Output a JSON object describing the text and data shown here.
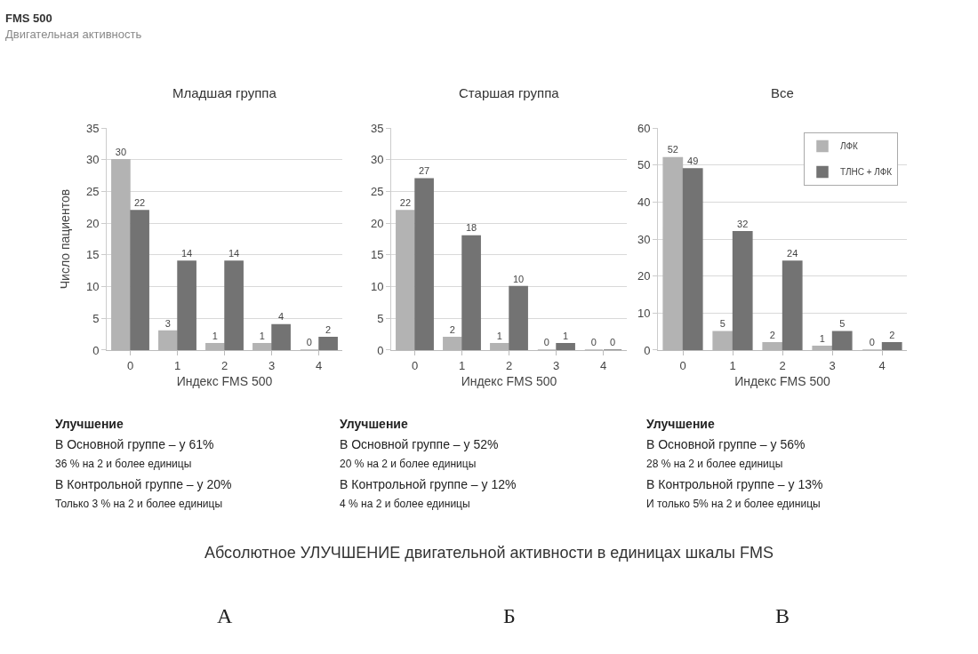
{
  "chart_data": [
    {
      "type": "bar",
      "title": "Младшая группа",
      "xlabel": "Индекс FMS 500",
      "ylabel": "Число пациентов",
      "categories": [
        "0",
        "1",
        "2",
        "3",
        "4"
      ],
      "series": [
        {
          "color": "#b3b3b3",
          "values": [
            30,
            3,
            1,
            1,
            0
          ]
        },
        {
          "color": "#737373",
          "values": [
            22,
            14,
            14,
            4,
            2
          ]
        }
      ],
      "ylim": [
        0,
        35
      ],
      "yticks": [
        0,
        5,
        10,
        15,
        20,
        25,
        30,
        35
      ],
      "grid": "y",
      "data_labels": true,
      "annotations": [
        "FMS 500",
        "Двигательная активность",
        "Улучшение",
        "В Основной группе – у 61%",
        "36 % на 2 и более единицы",
        "В Контрольной группе – у 20%",
        "Только 3 % на 2 и более единицы",
        "А"
      ]
    },
    {
      "type": "bar",
      "title": "Старшая группа",
      "xlabel": "Индекс FMS 500",
      "categories": [
        "0",
        "1",
        "2",
        "3",
        "4"
      ],
      "series": [
        {
          "color": "#b3b3b3",
          "values": [
            22,
            2,
            1,
            0,
            0
          ]
        },
        {
          "color": "#737373",
          "values": [
            27,
            18,
            10,
            1,
            0
          ]
        }
      ],
      "ylim": [
        0,
        35
      ],
      "yticks": [
        0,
        5,
        10,
        15,
        20,
        25,
        30,
        35
      ],
      "grid": "y",
      "data_labels": true,
      "annotations": [
        "Улучшение",
        "В Основной группе – у 52%",
        "20 % на 2 и более единицы",
        "В Контрольной группе – у 12%",
        "4 % на 2 и более единицы",
        "Абсолютное УЛУЧШЕНИЕ двигательной активности в единицах шкалы FMS",
        "Б"
      ]
    },
    {
      "type": "bar",
      "title": "Все",
      "xlabel": "Индекс FMS 500",
      "categories": [
        "0",
        "1",
        "2",
        "3",
        "4"
      ],
      "series": [
        {
          "name": "ЛФК",
          "color": "#b3b3b3",
          "values": [
            52,
            5,
            2,
            1,
            0
          ]
        },
        {
          "name": "ТЛНС + ЛФК",
          "color": "#737373",
          "values": [
            49,
            32,
            24,
            5,
            2
          ]
        }
      ],
      "ylim": [
        0,
        60
      ],
      "yticks": [
        0,
        10,
        20,
        30,
        40,
        50,
        60
      ],
      "grid": "y",
      "data_labels": true,
      "legend": "top right",
      "annotations": [
        "Улучшение",
        "В Основной группе – у 56%",
        "28 % на 2 и более единицы",
        "В Контрольной группе – у 13%",
        "И только 5% на 2 и более единицы",
        "В"
      ]
    }
  ]
}
